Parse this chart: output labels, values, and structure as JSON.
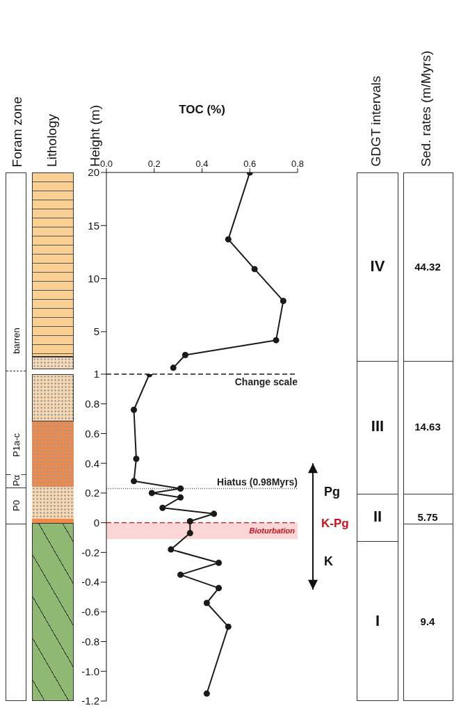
{
  "chart_data": [
    {
      "type": "line",
      "xlabel": "TOC (%)",
      "ylabel": "Height (m)",
      "xlim": [
        0,
        0.8
      ],
      "xticks": [
        {
          "value": 0,
          "label": "0.0"
        },
        0.2,
        0.4,
        0.6,
        0.8
      ],
      "ylim": [
        1,
        20
      ],
      "yticks": [
        5,
        10,
        15,
        20
      ],
      "marker": "circle",
      "series": [
        {
          "color": "#1a1a1a",
          "x": [
            0.6,
            0.51,
            0.62,
            0.74,
            0.71,
            0.33,
            0.28
          ],
          "values": [
            20,
            13.7,
            10.9,
            7.9,
            4.2,
            2.8,
            1.6
          ]
        }
      ],
      "annotations": [
        "Foram zone",
        "Lithology",
        "GDGT intervals",
        "Sed. rates (m/Myrs)",
        "barren",
        "P1a-c",
        "Pα",
        "P0",
        "IV",
        "III",
        "II",
        "I",
        "44.32",
        "14.63",
        "5.75",
        "9.4"
      ]
    },
    {
      "type": "line",
      "xlim": [
        0,
        0.8
      ],
      "ylim": [
        -1.2,
        1
      ],
      "yticks": [
        1,
        0.8,
        0.6,
        0.4,
        0.2,
        0,
        -0.2,
        -0.4,
        -0.6,
        -0.8,
        {
          "value": -1,
          "label": "-1.0"
        },
        -1.2
      ],
      "tick_labels": "y",
      "marker": "circle",
      "series": [
        {
          "color": "#1a1a1a",
          "x": [
            0.18,
            0.115,
            0.125,
            0.115,
            0.31,
            0.19,
            0.31,
            0.235,
            0.45,
            0.35,
            0.35,
            0.27,
            0.47,
            0.31,
            0.47,
            0.42,
            0.51,
            0.42
          ],
          "values": [
            1,
            0.76,
            0.43,
            0.28,
            0.23,
            0.2,
            0.17,
            0.1,
            0.06,
            0.01,
            -0.07,
            -0.18,
            -0.27,
            -0.35,
            -0.44,
            -0.54,
            -0.7,
            -1.15
          ]
        }
      ],
      "ref_lines": [
        {
          "axis": "y",
          "value": 1,
          "label": "Change scale",
          "color": "#1a1a1a",
          "line_style": "dashed"
        },
        {
          "axis": "y",
          "value": 0.23,
          "label": "Hiatus (0.98Myrs)",
          "color": "#555555",
          "line_style": "dotted"
        },
        {
          "axis": "y",
          "value": 0,
          "label": "K-Pg",
          "color": "#d0101a",
          "line_style": "dashed"
        }
      ],
      "bands": [
        {
          "axis": "y",
          "from": -0.11,
          "to": 0,
          "label": "Bioturbation",
          "color": "#f9cccc"
        }
      ],
      "annotations": [
        "Pg",
        "K"
      ]
    }
  ]
}
